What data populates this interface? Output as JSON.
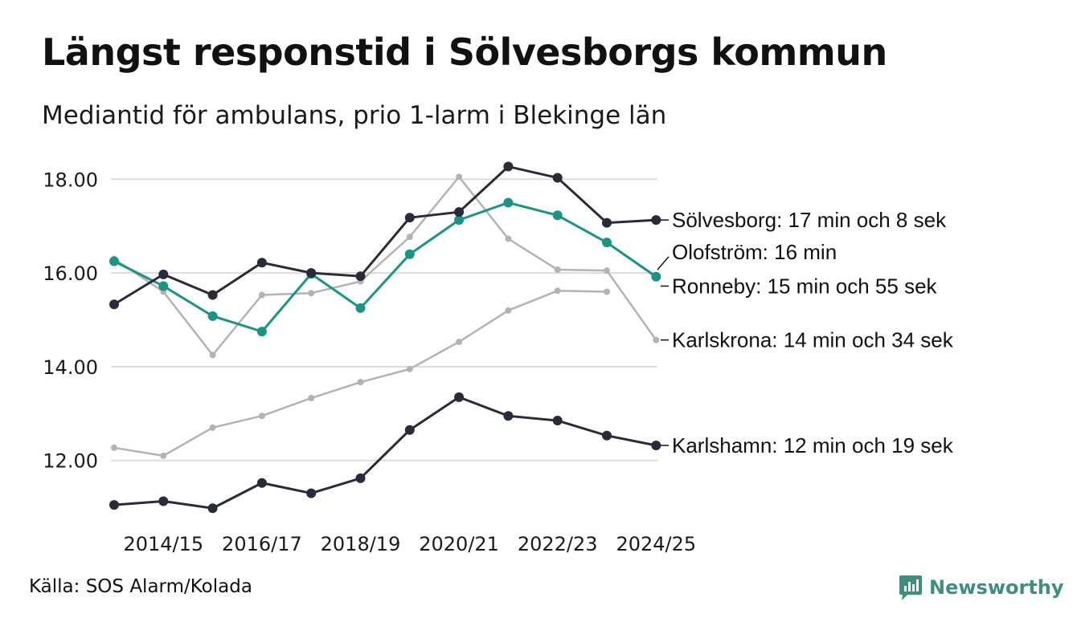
{
  "title": "Längst responstid i Sölvesborgs kommun",
  "subtitle": "Mediantid för ambulans, prio 1-larm i Blekinge län",
  "source": "Källa: SOS Alarm/Kolada",
  "brand": {
    "name": "Newsworthy",
    "icon": "chart-logo-icon",
    "color": "#3f8f80"
  },
  "chart_data": {
    "type": "line",
    "title": "Längst responstid i Sölvesborgs kommun",
    "ylim": [
      10.8,
      18.6
    ],
    "y_ticks": [
      "12.00",
      "14.00",
      "16.00",
      "18.00"
    ],
    "y_tick_values": [
      12,
      14,
      16,
      18
    ],
    "x": [
      "2013/14",
      "2014/15",
      "2015/16",
      "2016/17",
      "2017/18",
      "2018/19",
      "2019/20",
      "2020/21",
      "2021/22",
      "2022/23",
      "2023/24",
      "2024/25"
    ],
    "x_tick_labels": [
      "2014/15",
      "2016/17",
      "2018/19",
      "2020/21",
      "2022/23",
      "2024/25"
    ],
    "grid": true,
    "series": [
      {
        "name": "Karlskrona",
        "color": "#b3b3b3",
        "emphasis": "light",
        "label": "Karlskrona: 14 min och 34 sek",
        "values": [
          16.3,
          15.6,
          14.25,
          15.53,
          15.57,
          15.82,
          16.77,
          18.05,
          16.73,
          16.07,
          16.05,
          14.57
        ]
      },
      {
        "name": "Olofström",
        "color": "#b3b3b3",
        "emphasis": "light",
        "label": "Olofström: 16 min",
        "values": [
          12.27,
          12.1,
          12.7,
          12.95,
          13.33,
          13.67,
          13.95,
          14.53,
          15.2,
          15.62,
          15.6,
          null
        ]
      },
      {
        "name": "Ronneby",
        "color": "#1a9585",
        "emphasis": "highlight",
        "label": "Ronneby: 15 min och 55 sek",
        "values": [
          16.25,
          15.72,
          15.08,
          14.75,
          15.98,
          15.25,
          16.4,
          17.13,
          17.5,
          17.23,
          16.65,
          15.92
        ]
      },
      {
        "name": "Sölvesborg",
        "color": "#2b2a3a",
        "emphasis": "dark",
        "label": "Sölvesborg: 17 min och 8 sek",
        "values": [
          15.33,
          15.97,
          15.53,
          16.22,
          16.0,
          15.93,
          17.18,
          17.3,
          18.27,
          18.03,
          17.07,
          17.13
        ]
      },
      {
        "name": "Karlshamn",
        "color": "#2b2a3a",
        "emphasis": "dark",
        "label": "Karlshamn: 12 min och 19 sek",
        "values": [
          11.05,
          11.13,
          10.98,
          11.52,
          11.3,
          11.62,
          12.65,
          13.35,
          12.95,
          12.85,
          12.53,
          12.32
        ]
      }
    ],
    "direct_labels": [
      {
        "series": "Sölvesborg",
        "text": "Sölvesborg: 17 min och 8 sek",
        "y": 17.13
      },
      {
        "series": "Olofström",
        "text": "Olofström: 16 min",
        "y": 16.45,
        "leader_to": 16.0
      },
      {
        "series": "Ronneby",
        "text": "Ronneby: 15 min och 55 sek",
        "y": 15.72
      },
      {
        "series": "Karlskrona",
        "text": "Karlskrona: 14 min och 34 sek",
        "y": 14.57
      },
      {
        "series": "Karlshamn",
        "text": "Karlshamn: 12 min och 19 sek",
        "y": 12.32
      }
    ]
  }
}
